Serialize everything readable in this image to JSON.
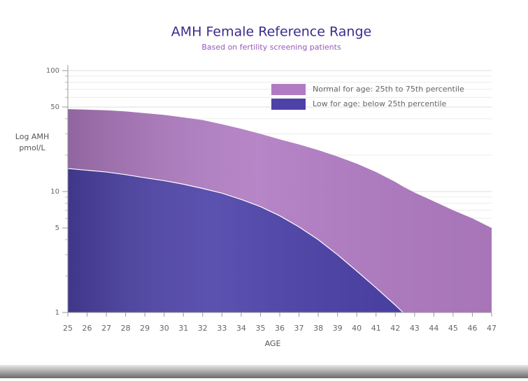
{
  "chart_data": {
    "type": "area",
    "title": "AMH Female Reference Range",
    "subtitle": "Based on fertility screening patients",
    "ylabel_lines": [
      "Log AMH",
      "pmol/L"
    ],
    "xlabel": "AGE",
    "log_y": true,
    "grid": true,
    "legend_position": "top-right",
    "x": [
      25,
      26,
      27,
      28,
      29,
      30,
      31,
      32,
      33,
      34,
      35,
      36,
      37,
      38,
      39,
      40,
      41,
      42,
      42.4,
      43,
      44,
      45,
      46,
      47
    ],
    "series": [
      {
        "name": "Normal for age: 25th to 75th percentile",
        "color": "#b07bc2",
        "values": [
          48,
          47.5,
          47,
          46,
          44.5,
          43,
          41,
          39,
          36,
          33,
          30,
          27,
          24.5,
          22,
          19.5,
          17,
          14.5,
          12,
          11,
          9.8,
          8.3,
          7,
          6,
          5
        ]
      },
      {
        "name": "Low for age: below 25th percentile",
        "color": "#4d42a8",
        "values": [
          15.5,
          15,
          14.5,
          13.8,
          13,
          12.3,
          11.5,
          10.6,
          9.7,
          8.6,
          7.5,
          6.3,
          5.1,
          4,
          3,
          2.2,
          1.6,
          1.15,
          1,
          null,
          null,
          null,
          null,
          null
        ]
      }
    ],
    "xlim": [
      25,
      47
    ],
    "xticks": [
      25,
      26,
      27,
      28,
      29,
      30,
      31,
      32,
      33,
      34,
      35,
      36,
      37,
      38,
      39,
      40,
      41,
      42,
      43,
      44,
      45,
      46,
      47
    ],
    "ylim": [
      1,
      100
    ],
    "yticks": [
      1,
      5,
      10,
      50,
      100
    ],
    "minor_yticks": [
      2,
      3,
      4,
      6,
      7,
      8,
      9,
      20,
      30,
      40,
      60,
      70,
      80,
      90
    ]
  }
}
